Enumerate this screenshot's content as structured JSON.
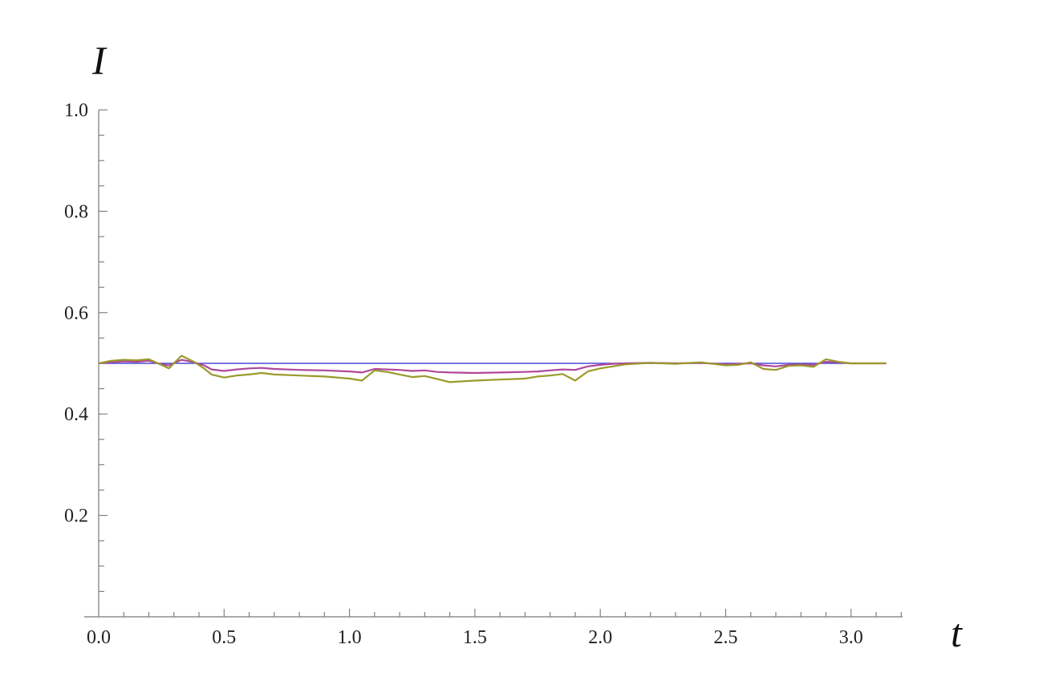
{
  "chart_data": {
    "type": "line",
    "title": "",
    "xlabel": "t",
    "ylabel": "I",
    "xlim": [
      0,
      3.2
    ],
    "ylim": [
      0,
      1.0
    ],
    "x_ticks": [
      "0.0",
      "0.5",
      "1.0",
      "1.5",
      "2.0",
      "2.5",
      "3.0"
    ],
    "y_ticks": [
      "0.2",
      "0.4",
      "0.6",
      "0.8",
      "1.0"
    ],
    "grid": false,
    "legend": "none",
    "series": [
      {
        "color": "#4a4ad8",
        "x": [
          0.0,
          3.14
        ],
        "y": [
          0.5,
          0.5
        ]
      },
      {
        "color": "#b0479a",
        "x": [
          0.0,
          0.05,
          0.1,
          0.15,
          0.2,
          0.25,
          0.28,
          0.33,
          0.38,
          0.42,
          0.45,
          0.5,
          0.55,
          0.6,
          0.65,
          0.7,
          0.8,
          0.9,
          1.0,
          1.05,
          1.1,
          1.15,
          1.2,
          1.25,
          1.3,
          1.35,
          1.4,
          1.5,
          1.6,
          1.7,
          1.75,
          1.8,
          1.85,
          1.9,
          1.95,
          2.0,
          2.05,
          2.1,
          2.2,
          2.3,
          2.4,
          2.5,
          2.55,
          2.6,
          2.65,
          2.7,
          2.75,
          2.8,
          2.85,
          2.9,
          2.95,
          3.0,
          3.14
        ],
        "y": [
          0.5,
          0.502,
          0.504,
          0.503,
          0.505,
          0.498,
          0.496,
          0.507,
          0.502,
          0.496,
          0.488,
          0.485,
          0.488,
          0.49,
          0.491,
          0.489,
          0.487,
          0.486,
          0.484,
          0.482,
          0.489,
          0.488,
          0.487,
          0.485,
          0.486,
          0.483,
          0.482,
          0.481,
          0.482,
          0.483,
          0.484,
          0.486,
          0.488,
          0.487,
          0.494,
          0.497,
          0.499,
          0.5,
          0.501,
          0.5,
          0.501,
          0.498,
          0.499,
          0.5,
          0.496,
          0.494,
          0.497,
          0.498,
          0.497,
          0.503,
          0.502,
          0.5,
          0.5
        ]
      },
      {
        "color": "#9a9a2a",
        "x": [
          0.0,
          0.05,
          0.1,
          0.15,
          0.2,
          0.25,
          0.28,
          0.33,
          0.38,
          0.42,
          0.45,
          0.5,
          0.55,
          0.6,
          0.65,
          0.7,
          0.8,
          0.9,
          1.0,
          1.05,
          1.1,
          1.15,
          1.2,
          1.25,
          1.3,
          1.35,
          1.4,
          1.5,
          1.6,
          1.7,
          1.75,
          1.8,
          1.85,
          1.9,
          1.95,
          2.0,
          2.05,
          2.1,
          2.2,
          2.3,
          2.4,
          2.5,
          2.55,
          2.6,
          2.65,
          2.7,
          2.75,
          2.8,
          2.85,
          2.9,
          2.95,
          3.0,
          3.14
        ],
        "y": [
          0.5,
          0.505,
          0.507,
          0.506,
          0.508,
          0.497,
          0.49,
          0.515,
          0.503,
          0.49,
          0.478,
          0.472,
          0.476,
          0.478,
          0.481,
          0.478,
          0.476,
          0.474,
          0.47,
          0.466,
          0.486,
          0.483,
          0.478,
          0.473,
          0.475,
          0.469,
          0.463,
          0.466,
          0.468,
          0.47,
          0.474,
          0.476,
          0.479,
          0.466,
          0.484,
          0.49,
          0.494,
          0.498,
          0.501,
          0.499,
          0.502,
          0.496,
          0.497,
          0.502,
          0.489,
          0.487,
          0.495,
          0.496,
          0.493,
          0.508,
          0.503,
          0.5,
          0.5
        ]
      }
    ]
  }
}
